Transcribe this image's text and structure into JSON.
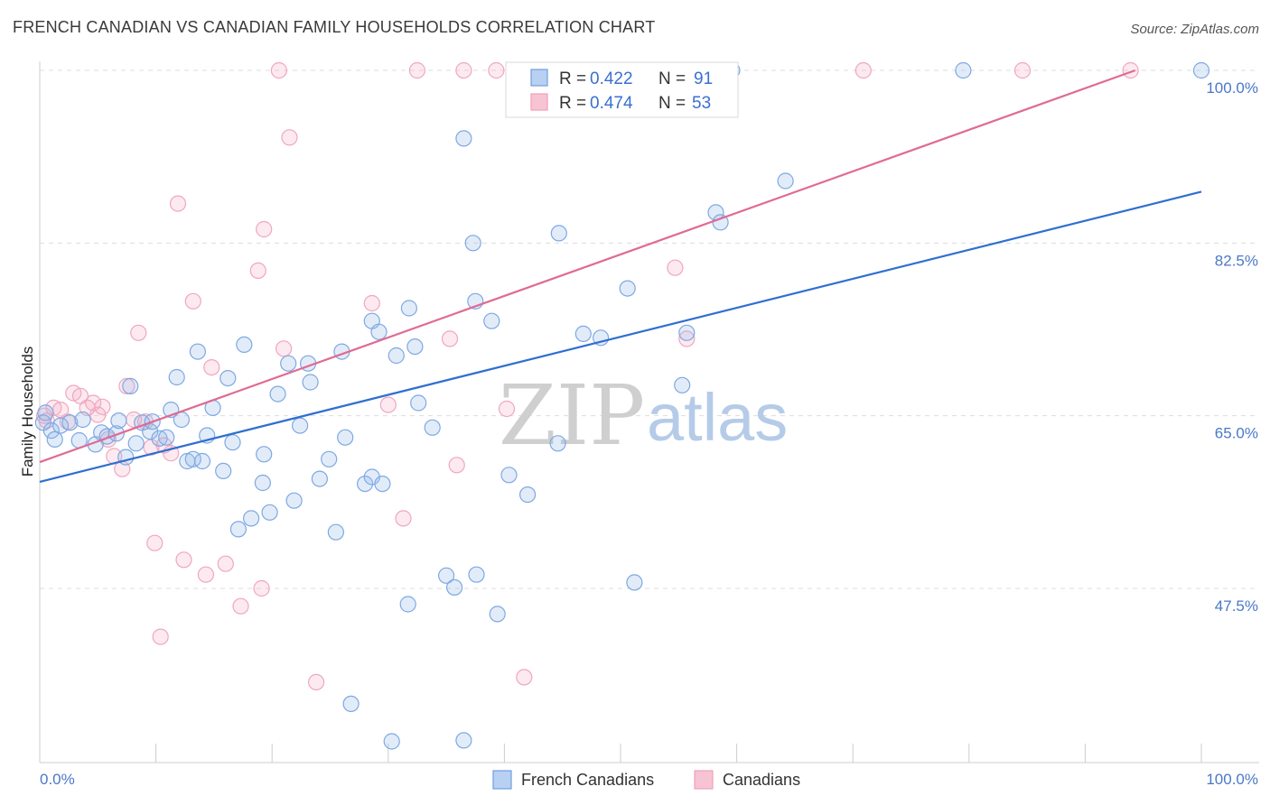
{
  "title": "FRENCH CANADIAN VS CANADIAN FAMILY HOUSEHOLDS CORRELATION CHART",
  "source": "Source: ZipAtlas.com",
  "watermark": {
    "zip": "ZIP",
    "atlas": "atlas"
  },
  "colors": {
    "blue": "#6f9fe0",
    "blue_line": "#2f6fd0",
    "pink": "#f0a0bb",
    "pink_line": "#e06a93",
    "grid": "#dddddd",
    "axis_tick_text": "#4a78c8"
  },
  "legend": {
    "rows": [
      {
        "r_label": "R =",
        "r_value": "0.422",
        "n_label": "N =",
        "n_value": "91"
      },
      {
        "r_label": "R =",
        "r_value": "0.474",
        "n_label": "N =",
        "n_value": "53"
      }
    ]
  },
  "bottom_legend": [
    "French Canadians",
    "Canadians"
  ],
  "chart_data": {
    "type": "scatter",
    "title": "FRENCH CANADIAN VS CANADIAN FAMILY HOUSEHOLDS CORRELATION CHART",
    "xlabel": "",
    "ylabel": "Family Households",
    "xlim": [
      0,
      100
    ],
    "ylim": [
      31,
      101
    ],
    "x_tick_labels": [
      "0.0%",
      "100.0%"
    ],
    "y_ticks": [
      {
        "value": 47.5,
        "label": "47.5%"
      },
      {
        "value": 65.0,
        "label": "65.0%"
      },
      {
        "value": 82.5,
        "label": "82.5%"
      },
      {
        "value": 100.0,
        "label": "100.0%"
      }
    ],
    "grid": "horizontal dashed",
    "legend_position": "top-center",
    "series": [
      {
        "name": "French Canadians",
        "color": "#6f9fe0",
        "r": 0.422,
        "n": 91,
        "trend": {
          "x": [
            0,
            100
          ],
          "y": [
            58.3,
            87.7
          ]
        },
        "points": [
          [
            0.5,
            65.3
          ],
          [
            1.0,
            63.5
          ],
          [
            1.3,
            62.6
          ],
          [
            1.8,
            64.0
          ],
          [
            2.6,
            64.3
          ],
          [
            3.4,
            62.5
          ],
          [
            3.7,
            64.6
          ],
          [
            4.8,
            62.1
          ],
          [
            5.3,
            63.3
          ],
          [
            5.8,
            62.9
          ],
          [
            6.6,
            63.2
          ],
          [
            6.8,
            64.5
          ],
          [
            7.4,
            60.8
          ],
          [
            7.8,
            68.0
          ],
          [
            8.3,
            62.2
          ],
          [
            8.8,
            64.3
          ],
          [
            9.5,
            63.4
          ],
          [
            9.7,
            64.4
          ],
          [
            10.3,
            62.7
          ],
          [
            10.9,
            62.8
          ],
          [
            11.3,
            65.6
          ],
          [
            11.8,
            68.9
          ],
          [
            12.2,
            64.6
          ],
          [
            12.7,
            60.4
          ],
          [
            13.2,
            60.6
          ],
          [
            13.6,
            71.5
          ],
          [
            14.0,
            60.4
          ],
          [
            14.4,
            63.0
          ],
          [
            14.9,
            65.8
          ],
          [
            15.8,
            59.4
          ],
          [
            16.2,
            68.8
          ],
          [
            16.6,
            62.3
          ],
          [
            17.1,
            53.5
          ],
          [
            17.6,
            72.2
          ],
          [
            18.2,
            54.6
          ],
          [
            19.2,
            58.2
          ],
          [
            19.3,
            61.1
          ],
          [
            19.8,
            55.2
          ],
          [
            20.5,
            67.2
          ],
          [
            21.4,
            70.3
          ],
          [
            21.9,
            56.4
          ],
          [
            22.4,
            64.0
          ],
          [
            23.1,
            70.3
          ],
          [
            23.3,
            68.4
          ],
          [
            24.1,
            58.6
          ],
          [
            24.9,
            60.6
          ],
          [
            25.5,
            53.2
          ],
          [
            26.0,
            71.5
          ],
          [
            26.3,
            62.8
          ],
          [
            26.8,
            35.8
          ],
          [
            28.0,
            58.1
          ],
          [
            28.6,
            74.6
          ],
          [
            28.6,
            58.8
          ],
          [
            29.2,
            73.5
          ],
          [
            29.5,
            58.1
          ],
          [
            30.3,
            32.0
          ],
          [
            30.7,
            71.1
          ],
          [
            31.7,
            45.9
          ],
          [
            31.8,
            75.9
          ],
          [
            32.3,
            72.0
          ],
          [
            32.6,
            66.3
          ],
          [
            33.8,
            63.8
          ],
          [
            35.0,
            48.8
          ],
          [
            35.7,
            47.6
          ],
          [
            36.5,
            32.1
          ],
          [
            36.5,
            93.1
          ],
          [
            37.3,
            82.5
          ],
          [
            37.5,
            76.6
          ],
          [
            37.6,
            48.9
          ],
          [
            38.9,
            74.6
          ],
          [
            39.4,
            44.9
          ],
          [
            40.4,
            59.0
          ],
          [
            42.0,
            57.0
          ],
          [
            44.6,
            62.2
          ],
          [
            44.7,
            83.5
          ],
          [
            46.8,
            73.3
          ],
          [
            48.3,
            72.9
          ],
          [
            50.6,
            77.9
          ],
          [
            51.2,
            48.1
          ],
          [
            55.3,
            68.1
          ],
          [
            55.7,
            73.4
          ],
          [
            58.2,
            85.6
          ],
          [
            58.6,
            84.6
          ],
          [
            64.2,
            88.8
          ],
          [
            79.5,
            100.0
          ],
          [
            47.3,
            100.0
          ],
          [
            47.9,
            100.0
          ],
          [
            58.4,
            100.0
          ],
          [
            59.6,
            100.0
          ],
          [
            100.0,
            100.0
          ],
          [
            0.3,
            64.3
          ]
        ]
      },
      {
        "name": "Canadians",
        "color": "#f0a0bb",
        "r": 0.474,
        "n": 53,
        "trend": {
          "x": [
            0,
            94.3
          ],
          "y": [
            60.3,
            100.0
          ]
        },
        "points": [
          [
            0.6,
            64.5
          ],
          [
            1.2,
            65.8
          ],
          [
            1.8,
            65.6
          ],
          [
            2.4,
            64.4
          ],
          [
            2.9,
            67.3
          ],
          [
            3.5,
            67.0
          ],
          [
            4.1,
            65.8
          ],
          [
            4.6,
            66.3
          ],
          [
            5.0,
            65.1
          ],
          [
            5.4,
            65.9
          ],
          [
            5.9,
            62.6
          ],
          [
            6.4,
            60.9
          ],
          [
            7.1,
            59.6
          ],
          [
            7.5,
            68.0
          ],
          [
            8.1,
            64.6
          ],
          [
            8.5,
            73.4
          ],
          [
            9.1,
            64.4
          ],
          [
            9.6,
            61.8
          ],
          [
            9.9,
            52.1
          ],
          [
            10.4,
            42.6
          ],
          [
            10.7,
            62.0
          ],
          [
            11.3,
            61.2
          ],
          [
            11.9,
            86.5
          ],
          [
            12.4,
            50.4
          ],
          [
            13.2,
            76.6
          ],
          [
            14.3,
            48.9
          ],
          [
            14.8,
            69.9
          ],
          [
            16.0,
            50.0
          ],
          [
            17.3,
            45.7
          ],
          [
            18.8,
            79.7
          ],
          [
            19.1,
            47.5
          ],
          [
            19.3,
            83.9
          ],
          [
            20.6,
            100.0
          ],
          [
            21.0,
            71.8
          ],
          [
            21.5,
            93.2
          ],
          [
            23.8,
            38.0
          ],
          [
            28.6,
            76.4
          ],
          [
            30.0,
            66.1
          ],
          [
            31.3,
            54.6
          ],
          [
            32.5,
            100.0
          ],
          [
            35.3,
            72.8
          ],
          [
            35.9,
            60.0
          ],
          [
            36.5,
            100.0
          ],
          [
            39.3,
            100.0
          ],
          [
            40.2,
            65.7
          ],
          [
            41.7,
            38.5
          ],
          [
            55.3,
            100.0
          ],
          [
            70.9,
            100.0
          ],
          [
            54.7,
            80.0
          ],
          [
            55.7,
            72.8
          ],
          [
            84.6,
            100.0
          ],
          [
            93.9,
            100.0
          ],
          [
            0.4,
            65.0
          ]
        ]
      }
    ]
  }
}
